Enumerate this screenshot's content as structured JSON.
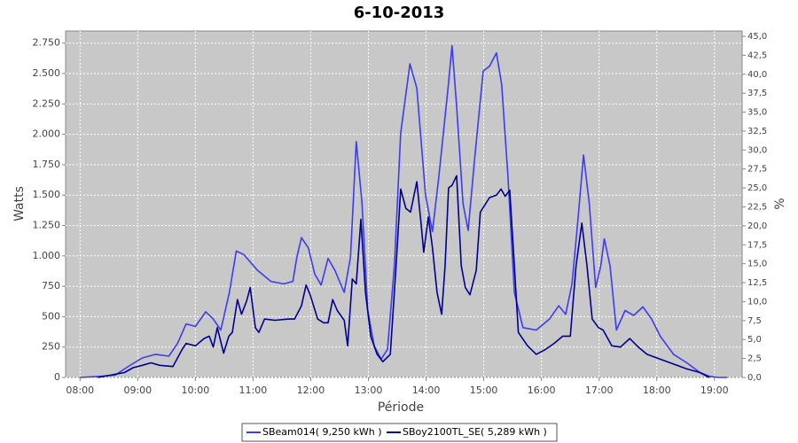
{
  "chart_data": {
    "type": "line",
    "title": "6-10-2013",
    "x_label": "Période",
    "y_label": "Watts",
    "y2_label": "%",
    "xlim": [
      7.75,
      19.48
    ],
    "ylim": [
      0,
      2850
    ],
    "y2lim": [
      0,
      45.7
    ],
    "grid": true,
    "xticks": [
      {
        "value": 8,
        "label": "08:00"
      },
      {
        "value": 9,
        "label": "09:00"
      },
      {
        "value": 10,
        "label": "10:00"
      },
      {
        "value": 11,
        "label": "11:00"
      },
      {
        "value": 12,
        "label": "12:00"
      },
      {
        "value": 13,
        "label": "13:00"
      },
      {
        "value": 14,
        "label": "14:00"
      },
      {
        "value": 15,
        "label": "15:00"
      },
      {
        "value": 16,
        "label": "16:00"
      },
      {
        "value": 17,
        "label": "17:00"
      },
      {
        "value": 18,
        "label": "18:00"
      },
      {
        "value": 19,
        "label": "19:00"
      }
    ],
    "yticks": [
      0,
      250,
      500,
      750,
      {
        "value": 1000,
        "label": "1.000"
      },
      {
        "value": 1250,
        "label": "1.250"
      },
      {
        "value": 1500,
        "label": "1.500"
      },
      {
        "value": 1750,
        "label": "1.750"
      },
      {
        "value": 2000,
        "label": "2.000"
      },
      {
        "value": 2250,
        "label": "2.250"
      },
      {
        "value": 2500,
        "label": "2.500"
      },
      {
        "value": 2750,
        "label": "2.750"
      }
    ],
    "y2ticks": [
      {
        "value": 0,
        "label": "0,0"
      },
      {
        "value": 2.5,
        "label": "2,5"
      },
      {
        "value": 5,
        "label": "5,0"
      },
      {
        "value": 7.5,
        "label": "7,5"
      },
      {
        "value": 10,
        "label": "10,0"
      },
      {
        "value": 12.5,
        "label": "12,5"
      },
      {
        "value": 15,
        "label": "15,0"
      },
      {
        "value": 17.5,
        "label": "17,5"
      },
      {
        "value": 20,
        "label": "20,0"
      },
      {
        "value": 22.5,
        "label": "22,5"
      },
      {
        "value": 25,
        "label": "25,0"
      },
      {
        "value": 27.5,
        "label": "27,5"
      },
      {
        "value": 30,
        "label": "30,0"
      },
      {
        "value": 32.5,
        "label": "32,5"
      },
      {
        "value": 35,
        "label": "35,0"
      },
      {
        "value": 37.5,
        "label": "37,5"
      },
      {
        "value": 40,
        "label": "40,0"
      },
      {
        "value": 42.5,
        "label": "42,5"
      },
      {
        "value": 45,
        "label": "45,0"
      }
    ],
    "series": [
      {
        "name": "SBeam014( 9,250 kWh )",
        "color": "#3c3cf0",
        "x": [
          8.0,
          8.38,
          8.61,
          8.85,
          9.08,
          9.31,
          9.54,
          9.69,
          9.84,
          10.0,
          10.18,
          10.31,
          10.44,
          10.59,
          10.71,
          10.84,
          11.08,
          11.31,
          11.53,
          11.69,
          11.76,
          11.84,
          11.96,
          12.07,
          12.18,
          12.3,
          12.42,
          12.58,
          12.69,
          12.79,
          12.89,
          12.99,
          13.1,
          13.22,
          13.33,
          13.45,
          13.56,
          13.72,
          13.84,
          13.99,
          14.11,
          14.22,
          14.38,
          14.45,
          14.53,
          14.64,
          14.73,
          14.84,
          14.99,
          15.1,
          15.22,
          15.31,
          15.42,
          15.53,
          15.68,
          15.91,
          16.14,
          16.3,
          16.42,
          16.53,
          16.63,
          16.73,
          16.83,
          16.94,
          17.03,
          17.09,
          17.19,
          17.3,
          17.45,
          17.6,
          17.76,
          17.91,
          18.06,
          18.29,
          18.52,
          18.75,
          18.91,
          19.06,
          19.22
        ],
        "values": [
          0,
          10,
          20,
          95,
          160,
          190,
          175,
          280,
          440,
          420,
          540,
          480,
          390,
          700,
          1040,
          1010,
          880,
          790,
          770,
          790,
          990,
          1150,
          1065,
          850,
          760,
          980,
          880,
          700,
          990,
          1940,
          1430,
          550,
          260,
          150,
          230,
          920,
          2010,
          2580,
          2380,
          1500,
          1200,
          1650,
          2380,
          2730,
          2230,
          1430,
          1210,
          1790,
          2520,
          2560,
          2670,
          2410,
          1650,
          700,
          410,
          390,
          480,
          590,
          520,
          770,
          1280,
          1830,
          1430,
          740,
          920,
          1140,
          920,
          390,
          550,
          510,
          580,
          480,
          340,
          190,
          120,
          40,
          10,
          0,
          0
        ]
      },
      {
        "name": "SBoy2100TL_SE( 5,289 kWh )",
        "color": "#000090",
        "x": [
          8.31,
          8.77,
          8.92,
          9.08,
          9.23,
          9.38,
          9.61,
          9.77,
          9.84,
          10.0,
          10.15,
          10.24,
          10.31,
          10.38,
          10.49,
          10.58,
          10.64,
          10.73,
          10.8,
          10.89,
          10.95,
          11.04,
          11.1,
          11.2,
          11.38,
          11.61,
          11.72,
          11.84,
          11.92,
          11.99,
          12.12,
          12.22,
          12.3,
          12.38,
          12.46,
          12.58,
          12.64,
          12.72,
          12.79,
          12.87,
          12.95,
          13.04,
          13.15,
          13.25,
          13.38,
          13.48,
          13.56,
          13.65,
          13.73,
          13.84,
          13.91,
          13.96,
          14.04,
          14.11,
          14.19,
          14.27,
          14.33,
          14.39,
          14.45,
          14.53,
          14.61,
          14.68,
          14.76,
          14.87,
          14.94,
          15.1,
          15.22,
          15.3,
          15.37,
          15.45,
          15.53,
          15.6,
          15.76,
          15.91,
          16.07,
          16.22,
          16.37,
          16.5,
          16.6,
          16.7,
          16.79,
          16.88,
          16.99,
          17.07,
          17.22,
          17.37,
          17.53,
          17.68,
          17.83,
          18.06,
          18.29,
          18.52,
          18.75,
          18.91
        ],
        "values": [
          0,
          40,
          80,
          100,
          120,
          100,
          90,
          230,
          280,
          260,
          320,
          340,
          250,
          410,
          200,
          340,
          370,
          640,
          520,
          630,
          740,
          410,
          370,
          480,
          470,
          480,
          480,
          590,
          760,
          680,
          480,
          450,
          450,
          640,
          550,
          470,
          260,
          810,
          770,
          1300,
          700,
          340,
          190,
          130,
          190,
          920,
          1550,
          1390,
          1360,
          1610,
          1280,
          1030,
          1320,
          1070,
          700,
          520,
          920,
          1560,
          1580,
          1660,
          920,
          740,
          680,
          880,
          1360,
          1480,
          1500,
          1550,
          1490,
          1540,
          920,
          370,
          260,
          190,
          230,
          280,
          340,
          340,
          920,
          1270,
          920,
          480,
          410,
          390,
          260,
          250,
          320,
          250,
          190,
          150,
          110,
          70,
          40,
          0
        ]
      }
    ]
  }
}
